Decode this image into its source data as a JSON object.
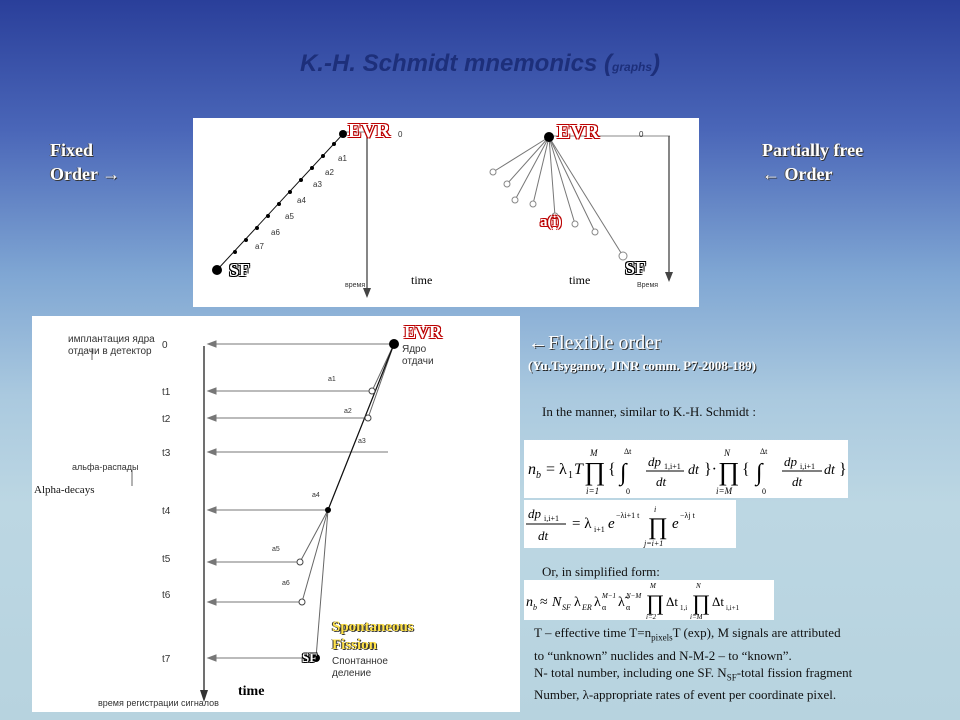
{
  "title": {
    "main": "K.-H. Schmidt mnemonics (",
    "sub": "graphs",
    "close": ")"
  },
  "left_label": {
    "line1": "Fixed",
    "line2": "Order →"
  },
  "right_label": {
    "line1": "Partially  free",
    "line2": "← Order"
  },
  "panel1": {
    "evr": "EVR",
    "sf": "SF",
    "zero": "0",
    "alphas": [
      "a1",
      "a2",
      "a3",
      "a4",
      "a5",
      "a6",
      "a7"
    ],
    "vremya": "время",
    "time": "time"
  },
  "panel2": {
    "evr": "EVR",
    "sf": "SF",
    "ai": "a(i)",
    "zero": "0",
    "vremya": "Время",
    "time": "time"
  },
  "panel3": {
    "evr": "EVR",
    "sf": "SF",
    "implant": [
      "имплантация ядра",
      "отдачи в детектор"
    ],
    "recoil": [
      "Ядро",
      "отдачи"
    ],
    "ticks": [
      "0",
      "t1",
      "t2",
      "t3",
      "t4",
      "t5",
      "t6",
      "t7"
    ],
    "alphas": [
      "a1",
      "a2",
      "a3",
      "a4",
      "a5",
      "a6"
    ],
    "alpha_ru": "альфа-распады",
    "alpha_en": "Alpha-decays",
    "spont": [
      "Spontaneous",
      "Fission"
    ],
    "spont_ru": [
      "Спонтанное",
      "деление"
    ],
    "bottom_ru": "время регистрации сигналов",
    "time": "time"
  },
  "flexible": {
    "title": "←Flexible order",
    "ref": "(Yu.Tsyganov, JINR comm. P7-2008-189)"
  },
  "manner": "In the manner, similar to K.-H. Schmidt :",
  "simplified": "Or, in simplified form:",
  "notes": [
    "T – effective time T=n",
    "pixels",
    "T (exp), M signals are attributed",
    "to “unknown” nuclides and N-M-2 – to “known”.",
    "N- total number, including one SF. N",
    "SF",
    "-total fission fragment",
    "Number, λ-appropriate rates of event per coordinate pixel."
  ]
}
